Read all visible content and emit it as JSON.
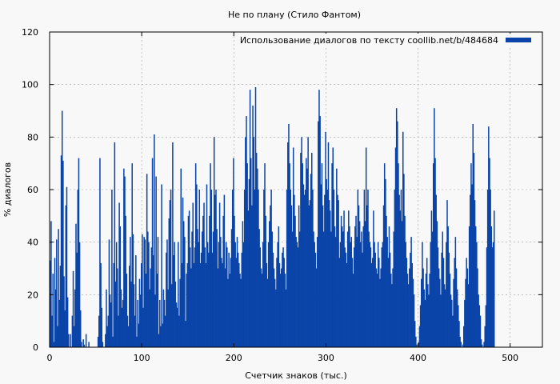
{
  "colors": {
    "background": "#f8f8f8",
    "bar": "#0a44a8",
    "grid": "#a0a0a0",
    "frame": "#000000"
  },
  "chart_data": {
    "type": "bar",
    "title": "Не по плану (Стило Фантом)",
    "xlabel": "Счетчик знаков (тыс.)",
    "ylabel": "% диалогов",
    "xlim": [
      0,
      535
    ],
    "ylim": [
      0,
      120
    ],
    "xticks": [
      0,
      100,
      200,
      300,
      400,
      500
    ],
    "yticks": [
      0,
      20,
      40,
      60,
      80,
      100,
      120
    ],
    "grid": true,
    "legend_position": "top-right",
    "series": [
      {
        "name": "Использование диалогов по тексту  coollib.net/b/484684",
        "x_start": 1,
        "x_step": 1,
        "values": [
          33,
          48,
          12,
          28,
          2,
          34,
          22,
          41,
          8,
          45,
          18,
          31,
          73,
          90,
          71,
          27,
          14,
          54,
          61,
          19,
          5,
          0,
          5,
          0,
          12,
          29,
          8,
          22,
          47,
          36,
          60,
          72,
          40,
          14,
          2,
          0,
          3,
          1,
          0,
          5,
          0,
          0,
          2,
          0,
          0,
          0,
          0,
          0,
          0,
          0,
          0,
          0,
          4,
          12,
          72,
          32,
          15,
          2,
          0,
          0,
          5,
          22,
          8,
          12,
          41,
          20,
          17,
          60,
          4,
          32,
          78,
          25,
          40,
          30,
          12,
          55,
          46,
          22,
          15,
          18,
          68,
          65,
          50,
          28,
          12,
          8,
          31,
          42,
          25,
          70,
          43,
          24,
          12,
          35,
          4,
          18,
          9,
          26,
          20,
          32,
          43,
          15,
          42,
          41,
          28,
          66,
          44,
          40,
          22,
          30,
          38,
          72,
          35,
          81,
          20,
          65,
          28,
          42,
          5,
          18,
          8,
          62,
          9,
          22,
          18,
          12,
          36,
          41,
          22,
          49,
          56,
          60,
          24,
          78,
          35,
          40,
          25,
          17,
          15,
          40,
          12,
          26,
          68,
          32,
          57,
          48,
          42,
          10,
          28,
          32,
          50,
          52,
          38,
          30,
          44,
          55,
          32,
          38,
          70,
          62,
          45,
          40,
          60,
          32,
          36,
          44,
          50,
          55,
          38,
          32,
          62,
          40,
          36,
          50,
          70,
          60,
          36,
          44,
          80,
          58,
          60,
          45,
          30,
          40,
          55,
          42,
          34,
          32,
          50,
          58,
          30,
          40,
          38,
          26,
          36,
          28,
          34,
          45,
          60,
          72,
          50,
          40,
          34,
          42,
          36,
          32,
          28,
          26,
          36,
          48,
          40,
          60,
          80,
          88,
          70,
          52,
          64,
          98,
          72,
          54,
          92,
          80,
          60,
          99,
          74,
          68,
          60,
          45,
          38,
          30,
          28,
          40,
          60,
          70,
          50,
          32,
          26,
          40,
          48,
          54,
          60,
          44,
          36,
          30,
          26,
          22,
          34,
          40,
          46,
          32,
          28,
          30,
          36,
          38,
          34,
          28,
          22,
          60,
          78,
          85,
          70,
          60,
          54,
          44,
          76,
          58,
          50,
          42,
          40,
          38,
          54,
          44,
          74,
          80,
          70,
          62,
          58,
          60,
          72,
          68,
          80,
          54,
          56,
          66,
          74,
          60,
          44,
          40,
          36,
          30,
          42,
          86,
          98,
          88,
          62,
          70,
          54,
          44,
          58,
          82,
          64,
          60,
          78,
          56,
          52,
          44,
          70,
          76,
          60,
          46,
          42,
          68,
          58,
          56,
          34,
          40,
          50,
          46,
          44,
          52,
          38,
          36,
          32,
          44,
          52,
          46,
          40,
          42,
          34,
          28,
          38,
          46,
          50,
          42,
          60,
          54,
          48,
          40,
          44,
          36,
          46,
          60,
          48,
          76,
          54,
          60,
          44,
          40,
          38,
          32,
          34,
          52,
          40,
          36,
          30,
          28,
          40,
          34,
          26,
          30,
          38,
          40,
          54,
          70,
          64,
          50,
          42,
          34,
          46,
          36,
          28,
          24,
          30,
          44,
          60,
          76,
          91,
          86,
          70,
          58,
          52,
          60,
          48,
          82,
          66,
          50,
          40,
          34,
          28,
          24,
          30,
          36,
          42,
          32,
          26,
          20,
          10,
          4,
          1,
          0,
          2,
          8,
          16,
          26,
          40,
          30,
          22,
          18,
          28,
          34,
          24,
          20,
          28,
          40,
          52,
          44,
          70,
          91,
          72,
          58,
          48,
          38,
          30,
          26,
          20,
          36,
          44,
          34,
          24,
          22,
          40,
          56,
          46,
          36,
          28,
          20,
          18,
          12,
          26,
          34,
          42,
          30,
          22,
          16,
          10,
          4,
          2,
          0,
          1,
          8,
          18,
          26,
          34,
          30,
          24,
          46,
          58,
          70,
          62,
          85,
          74,
          56,
          46,
          40,
          30,
          20,
          16,
          12,
          3,
          1,
          0,
          2,
          8,
          16,
          38,
          60,
          84,
          72,
          60,
          46,
          38,
          40,
          52
        ]
      }
    ]
  }
}
